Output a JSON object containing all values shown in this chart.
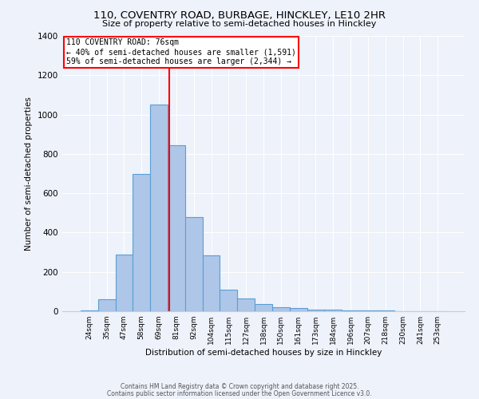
{
  "title1": "110, COVENTRY ROAD, BURBAGE, HINCKLEY, LE10 2HR",
  "title2": "Size of property relative to semi-detached houses in Hinckley",
  "xlabel": "Distribution of semi-detached houses by size in Hinckley",
  "ylabel": "Number of semi-detached properties",
  "categories": [
    "24sqm",
    "35sqm",
    "47sqm",
    "58sqm",
    "69sqm",
    "81sqm",
    "92sqm",
    "104sqm",
    "115sqm",
    "127sqm",
    "138sqm",
    "150sqm",
    "161sqm",
    "173sqm",
    "184sqm",
    "196sqm",
    "207sqm",
    "218sqm",
    "230sqm",
    "241sqm",
    "253sqm"
  ],
  "values": [
    5,
    60,
    290,
    700,
    1050,
    845,
    480,
    285,
    110,
    65,
    35,
    20,
    15,
    10,
    8,
    5,
    5,
    3,
    2,
    1,
    1
  ],
  "bar_color": "#aec6e8",
  "bar_edge_color": "#5a9fd4",
  "ylim": [
    0,
    1400
  ],
  "yticks": [
    0,
    200,
    400,
    600,
    800,
    1000,
    1200,
    1400
  ],
  "red_line_x": 4.58,
  "annotation_box_text": "110 COVENTRY ROAD: 76sqm\n← 40% of semi-detached houses are smaller (1,591)\n59% of semi-detached houses are larger (2,344) →",
  "footer1": "Contains HM Land Registry data © Crown copyright and database right 2025.",
  "footer2": "Contains public sector information licensed under the Open Government Licence v3.0.",
  "background_color": "#eef2fb"
}
